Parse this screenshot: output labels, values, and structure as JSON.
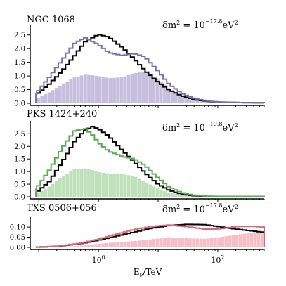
{
  "chart_data": {
    "type": "area",
    "shared_x": {
      "label": "E",
      "label_sub": "ν",
      "label_suffix": "/TeV",
      "scale": "log",
      "lim": [
        0.08,
        600
      ],
      "ticks": [
        {
          "value": 1,
          "base": "10",
          "exp": "0"
        },
        {
          "value": 100,
          "base": "10",
          "exp": "2"
        }
      ]
    },
    "panels": [
      {
        "name": "NGC 1068",
        "annotation": {
          "prefix": "δm",
          "sup1": "2",
          "eq": " = 10",
          "exp": "−17.8",
          "unit": "eV",
          "sup2": "2"
        },
        "color": "#7b6db3",
        "fill_color": "#c5bfdd",
        "ylim": [
          0,
          2.75
        ],
        "yticks": [
          "0.0",
          "0.5",
          "1.0",
          "1.5",
          "2.0",
          "2.5"
        ],
        "x": [
          0.09,
          0.15,
          0.25,
          0.4,
          0.6,
          1.0,
          1.5,
          2.5,
          4,
          6,
          10,
          15,
          25,
          40,
          70,
          120,
          250,
          550
        ],
        "black": [
          0.3,
          0.7,
          1.2,
          1.75,
          2.25,
          2.52,
          2.42,
          2.05,
          1.62,
          1.2,
          0.78,
          0.5,
          0.27,
          0.14,
          0.07,
          0.04,
          0.025,
          0.02
        ],
        "colored": [
          0.35,
          0.95,
          1.6,
          2.2,
          2.4,
          2.15,
          1.85,
          1.75,
          1.82,
          1.7,
          1.18,
          0.72,
          0.36,
          0.18,
          0.08,
          0.04,
          0.025,
          0.02
        ],
        "filled": [
          0.15,
          0.4,
          0.7,
          0.95,
          1.05,
          1.0,
          0.92,
          0.95,
          1.1,
          1.15,
          0.9,
          0.55,
          0.26,
          0.12,
          0.05,
          0.03,
          0.02,
          0.015
        ]
      },
      {
        "name": "PKS 1424+240",
        "annotation": {
          "prefix": "δm",
          "sup1": "2",
          "eq": " = 10",
          "exp": "−19.8",
          "unit": "eV",
          "sup2": "2"
        },
        "color": "#5aaa55",
        "fill_color": "#bfe0bb",
        "ylim": [
          0,
          2.9
        ],
        "yticks": [
          "0.0",
          "0.5",
          "1.0",
          "1.5",
          "2.0",
          "2.5"
        ],
        "x": [
          0.09,
          0.15,
          0.25,
          0.4,
          0.6,
          0.8,
          1.0,
          1.5,
          2.5,
          4,
          6,
          10,
          15,
          25,
          40,
          70,
          150,
          550
        ],
        "black": [
          0.15,
          0.6,
          1.4,
          2.2,
          2.65,
          2.78,
          2.7,
          2.4,
          1.85,
          1.38,
          0.95,
          0.5,
          0.27,
          0.1,
          0.04,
          0.015,
          0.008,
          0.005
        ],
        "colored": [
          0.3,
          1.05,
          1.95,
          2.62,
          2.7,
          2.45,
          2.15,
          1.8,
          1.6,
          1.5,
          1.25,
          0.75,
          0.4,
          0.16,
          0.06,
          0.02,
          0.01,
          0.005
        ],
        "filled": [
          0.1,
          0.4,
          0.8,
          1.1,
          1.12,
          1.05,
          0.98,
          0.92,
          0.9,
          0.82,
          0.6,
          0.33,
          0.17,
          0.07,
          0.03,
          0.01,
          0.005,
          0.0
        ]
      },
      {
        "name": "TXS 0506+056",
        "annotation": {
          "prefix": "δm",
          "sup1": "2",
          "eq": " = 10",
          "exp": "−17.8",
          "unit": "eV",
          "sup2": "2"
        },
        "color": "#e0657a",
        "fill_color": "#f6bec6",
        "ylim": [
          0,
          0.135
        ],
        "yticks": [
          "0.00",
          "0.05",
          "0.10"
        ],
        "x": [
          0.09,
          0.2,
          0.5,
          1.0,
          2.0,
          4,
          8,
          15,
          30,
          60,
          100,
          200,
          400,
          550
        ],
        "black": [
          0.001,
          0.005,
          0.018,
          0.035,
          0.055,
          0.075,
          0.095,
          0.107,
          0.113,
          0.112,
          0.103,
          0.09,
          0.08,
          0.075
        ],
        "colored": [
          0.001,
          0.006,
          0.02,
          0.04,
          0.064,
          0.088,
          0.103,
          0.11,
          0.102,
          0.09,
          0.09,
          0.102,
          0.104,
          0.1
        ],
        "filled": [
          0.0,
          0.002,
          0.008,
          0.017,
          0.025,
          0.031,
          0.04,
          0.05,
          0.045,
          0.042,
          0.048,
          0.062,
          0.072,
          0.07
        ]
      }
    ]
  }
}
